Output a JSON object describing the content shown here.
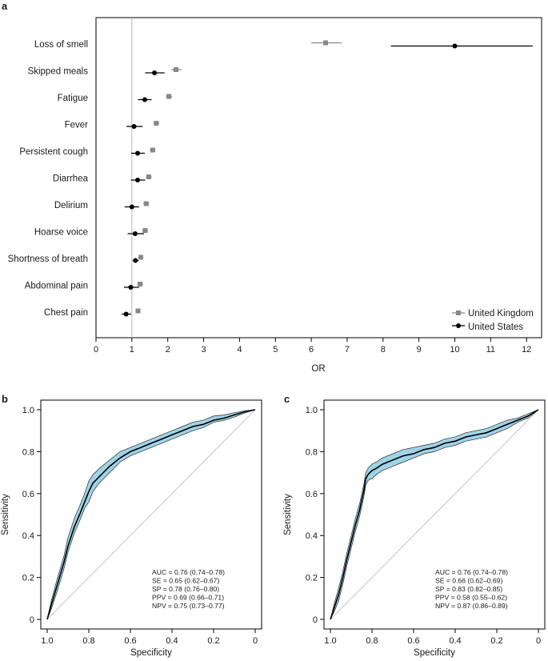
{
  "chart_data": [
    {
      "panel": "a",
      "type": "scatter",
      "title": "",
      "xlabel": "OR",
      "ylabel": "",
      "xlim": [
        0,
        12.5
      ],
      "xticks": [
        0,
        1,
        2,
        3,
        4,
        5,
        6,
        7,
        8,
        9,
        10,
        11,
        12
      ],
      "reference_line": 1,
      "categories": [
        "Loss of smell",
        "Skipped meals",
        "Fatigue",
        "Fever",
        "Persistent cough",
        "Diarrhea",
        "Delirium",
        "Hoarse voice",
        "Shortness of breath",
        "Abdominal pain",
        "Chest pain"
      ],
      "legend_position": "bottom-right",
      "series": [
        {
          "name": "United Kingdom",
          "color": "#888888",
          "marker": "square",
          "values": [
            6.4,
            2.23,
            2.03,
            1.68,
            1.58,
            1.47,
            1.4,
            1.37,
            1.25,
            1.23,
            1.17
          ],
          "lower": [
            6.0,
            2.1,
            1.95,
            1.6,
            1.5,
            1.39,
            1.32,
            1.29,
            1.2,
            1.15,
            1.1
          ],
          "upper": [
            6.85,
            2.38,
            2.12,
            1.76,
            1.66,
            1.55,
            1.48,
            1.45,
            1.3,
            1.31,
            1.24
          ]
        },
        {
          "name": "United States",
          "color": "#000000",
          "marker": "circle",
          "values": [
            10.0,
            1.63,
            1.36,
            1.06,
            1.16,
            1.16,
            1.0,
            1.09,
            1.1,
            0.97,
            0.84
          ],
          "lower": [
            8.22,
            1.37,
            1.17,
            0.85,
            0.98,
            0.97,
            0.8,
            0.88,
            1.02,
            0.78,
            0.72
          ],
          "upper": [
            12.17,
            1.91,
            1.55,
            1.3,
            1.36,
            1.37,
            1.2,
            1.34,
            1.19,
            1.2,
            0.98
          ]
        }
      ]
    },
    {
      "panel": "b",
      "type": "line",
      "title": "",
      "xlabel": "Specificity",
      "ylabel": "Sensitivity",
      "xlim": [
        1.0,
        0.0
      ],
      "ylim": [
        0.0,
        1.0
      ],
      "xticks": [
        "1.0",
        "0.8",
        "0.6",
        "0.4",
        "0.2",
        "0"
      ],
      "yticks": [
        "0",
        "0.2",
        "0.4",
        "0.6",
        "0.8",
        "1.0"
      ],
      "band_color": "#9fd3e6",
      "stats": [
        "AUC = 0.76 (0.74–0.78)",
        "SE = 0.65 (0.62–0.67)",
        "SP = 0.78 (0.76–0.80)",
        "PPV = 0.69 (0.66–0.71)",
        "NPV = 0.75 (0.73–0.77)"
      ],
      "x": [
        1.0,
        0.98,
        0.95,
        0.92,
        0.9,
        0.87,
        0.84,
        0.82,
        0.8,
        0.78,
        0.75,
        0.7,
        0.65,
        0.6,
        0.55,
        0.5,
        0.45,
        0.4,
        0.35,
        0.3,
        0.25,
        0.2,
        0.15,
        0.1,
        0.05,
        0.0
      ],
      "y": [
        0.0,
        0.07,
        0.17,
        0.27,
        0.35,
        0.44,
        0.51,
        0.56,
        0.61,
        0.65,
        0.68,
        0.73,
        0.77,
        0.8,
        0.82,
        0.84,
        0.86,
        0.88,
        0.9,
        0.92,
        0.93,
        0.95,
        0.96,
        0.975,
        0.99,
        1.0
      ],
      "lower": [
        0.0,
        0.05,
        0.14,
        0.24,
        0.32,
        0.41,
        0.48,
        0.53,
        0.56,
        0.61,
        0.65,
        0.7,
        0.75,
        0.78,
        0.8,
        0.82,
        0.84,
        0.86,
        0.88,
        0.9,
        0.915,
        0.94,
        0.95,
        0.965,
        0.985,
        1.0
      ],
      "upper": [
        0.0,
        0.09,
        0.2,
        0.3,
        0.39,
        0.48,
        0.55,
        0.6,
        0.66,
        0.69,
        0.72,
        0.76,
        0.8,
        0.82,
        0.84,
        0.86,
        0.88,
        0.9,
        0.92,
        0.94,
        0.95,
        0.97,
        0.975,
        0.985,
        0.995,
        1.0
      ]
    },
    {
      "panel": "c",
      "type": "line",
      "title": "",
      "xlabel": "Specificity",
      "ylabel": "Sensitivity",
      "xlim": [
        1.0,
        0.0
      ],
      "ylim": [
        0.0,
        1.0
      ],
      "xticks": [
        "1.0",
        "0.8",
        "0.6",
        "0.4",
        "0.2",
        "0"
      ],
      "yticks": [
        "0",
        "0.2",
        "0.4",
        "0.6",
        "0.8",
        "1.0"
      ],
      "band_color": "#9fd3e6",
      "stats": [
        "AUC = 0.76 (0.74–0.78)",
        "SE = 0.66 (0.62–0.69)",
        "SP = 0.83 (0.82–0.85)",
        "PPV = 0.58 (0.55–0.62)",
        "NPV = 0.87 (0.86–0.89)"
      ],
      "x": [
        1.0,
        0.98,
        0.96,
        0.94,
        0.92,
        0.9,
        0.88,
        0.86,
        0.84,
        0.83,
        0.82,
        0.81,
        0.8,
        0.78,
        0.75,
        0.7,
        0.65,
        0.6,
        0.55,
        0.5,
        0.45,
        0.4,
        0.35,
        0.3,
        0.25,
        0.2,
        0.15,
        0.1,
        0.05,
        0.0
      ],
      "y": [
        0.0,
        0.06,
        0.12,
        0.2,
        0.29,
        0.37,
        0.45,
        0.52,
        0.61,
        0.67,
        0.69,
        0.7,
        0.71,
        0.72,
        0.74,
        0.76,
        0.78,
        0.79,
        0.81,
        0.82,
        0.84,
        0.85,
        0.87,
        0.88,
        0.89,
        0.91,
        0.93,
        0.95,
        0.97,
        1.0
      ],
      "lower": [
        0.0,
        0.04,
        0.09,
        0.17,
        0.26,
        0.34,
        0.42,
        0.49,
        0.58,
        0.64,
        0.66,
        0.67,
        0.67,
        0.69,
        0.71,
        0.73,
        0.75,
        0.77,
        0.79,
        0.8,
        0.82,
        0.83,
        0.85,
        0.86,
        0.87,
        0.89,
        0.91,
        0.94,
        0.96,
        1.0
      ],
      "upper": [
        0.0,
        0.08,
        0.15,
        0.23,
        0.32,
        0.4,
        0.48,
        0.55,
        0.64,
        0.7,
        0.72,
        0.73,
        0.74,
        0.75,
        0.77,
        0.79,
        0.81,
        0.82,
        0.83,
        0.84,
        0.86,
        0.87,
        0.89,
        0.9,
        0.91,
        0.93,
        0.95,
        0.96,
        0.98,
        1.0
      ]
    }
  ]
}
